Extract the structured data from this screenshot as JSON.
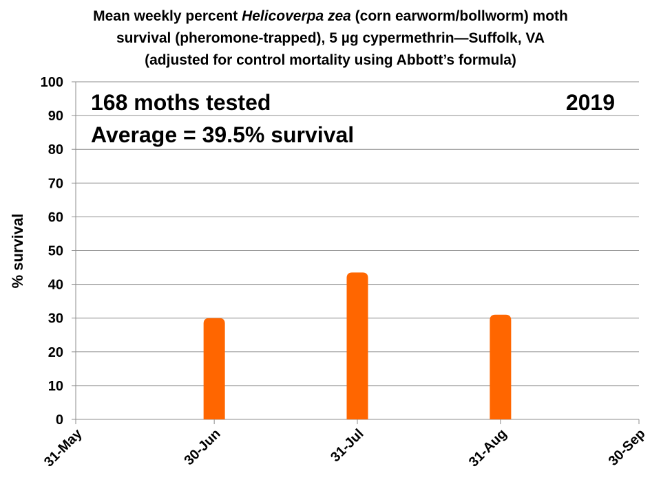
{
  "chart_data": {
    "type": "bar",
    "title_lines": [
      [
        "Mean weekly percent ",
        "Helicoverpa zea",
        " (corn earworm/bollworm) moth"
      ],
      "survival (pheromone-trapped), 5 µg cypermethrin—Suffolk, VA",
      "(adjusted for control mortality using Abbott’s formula)"
    ],
    "ylabel": "% survival",
    "ylim": [
      0,
      100
    ],
    "yticks": [
      0,
      10,
      20,
      30,
      40,
      50,
      60,
      70,
      80,
      90,
      100
    ],
    "xlim": [
      "2019-05-31",
      "2019-09-30"
    ],
    "xtick_labels": [
      "31-May",
      "30-Jun",
      "31-Jul",
      "31-Aug",
      "30-Sep"
    ],
    "xtick_dates": [
      "2019-05-31",
      "2019-06-30",
      "2019-07-31",
      "2019-08-31",
      "2019-09-30"
    ],
    "x": [
      "2019-06-30",
      "2019-07-31",
      "2019-08-31"
    ],
    "values": [
      30,
      43.5,
      31
    ],
    "bar_color": "#FF6600",
    "grid": true,
    "annotations": {
      "moths_tested": "168 moths tested",
      "year": "2019",
      "average": "Average = 39.5% survival"
    }
  }
}
